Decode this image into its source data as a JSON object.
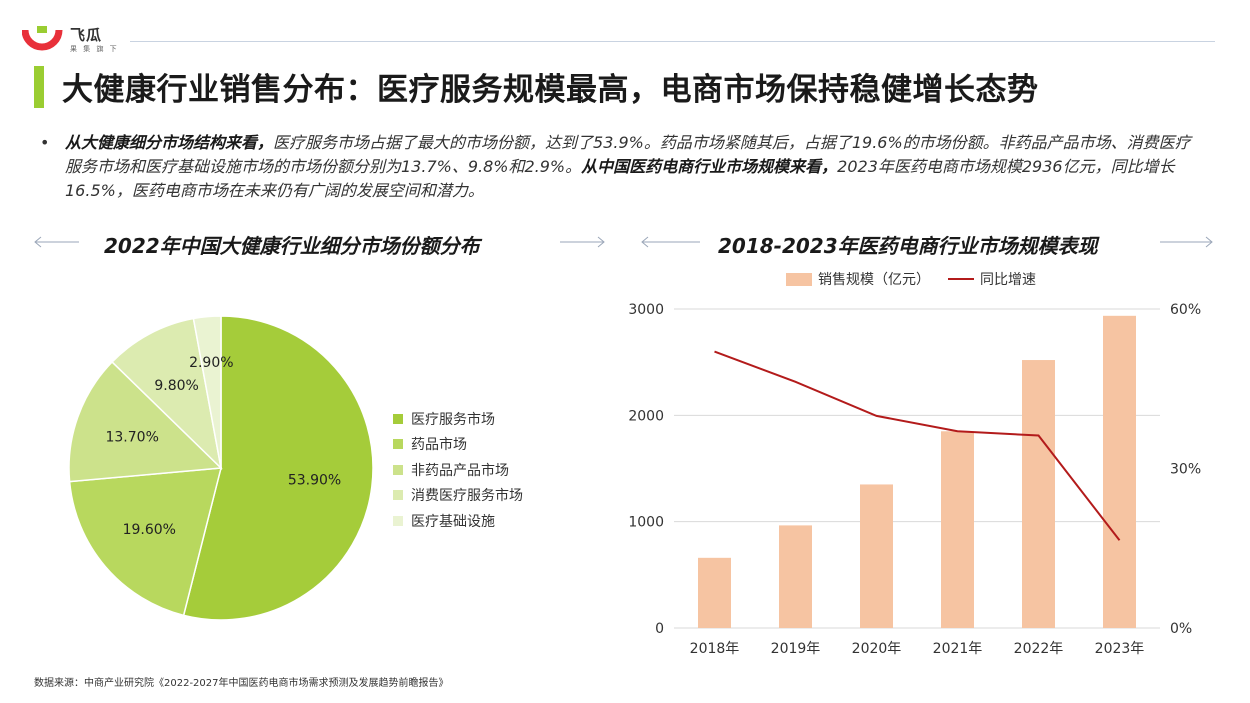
{
  "brand": {
    "name": "飞瓜",
    "slogan": "果 集 旗 下",
    "accent": "#9acd32"
  },
  "title": "大健康行业销售分布：医疗服务规模最高，电商市场保持稳健增长态势",
  "summary": {
    "bullet": "•",
    "p1_bold": "从大健康细分市场结构来看，",
    "p1": "医疗服务市场占据了最大的市场份额，达到了53.9%。药品市场紧随其后，占据了19.6%的市场份额。非药品产品市场、消费医疗服务市场和医疗基础设施市场的市场份额分别为13.7%、9.8%和2.9%。",
    "p2_bold": "从中国医药电商行业市场规模来看，",
    "p2": "2023年医药电商市场规模2936亿元，同比增长16.5%，医药电商市场在未来仍有广阔的发展空间和潜力。"
  },
  "source": "数据来源：中商产业研究院《2022-2027年中国医药电商市场需求预测及发展趋势前瞻报告》",
  "chart_data": [
    {
      "type": "pie",
      "title": "2022年中国大健康行业细分市场份额分布",
      "categories": [
        "医疗服务市场",
        "药品市场",
        "非药品产品市场",
        "消费医疗服务市场",
        "医疗基础设施"
      ],
      "values": [
        53.9,
        19.6,
        13.7,
        9.8,
        2.9
      ],
      "value_labels": [
        "53.90%",
        "19.60%",
        "13.70%",
        "9.80%",
        "2.90%"
      ],
      "colors": [
        "#a5cc3a",
        "#b8d85e",
        "#cce28b",
        "#dcebb0",
        "#eaf3d2"
      ],
      "legend": "right"
    },
    {
      "type": "bar",
      "title": "2018-2023年医药电商行业市场规模表现",
      "categories": [
        "2018年",
        "2019年",
        "2020年",
        "2021年",
        "2022年",
        "2023年"
      ],
      "series": [
        {
          "name": "销售规模（亿元）",
          "type": "bar",
          "axis": "left",
          "color": "#f6c4a2",
          "values": [
            660,
            965,
            1350,
            1850,
            2520,
            2936
          ]
        },
        {
          "name": "同比增速",
          "type": "line",
          "axis": "right",
          "color": "#b31b1b",
          "values": [
            52.0,
            46.3,
            39.9,
            37.0,
            36.2,
            16.5
          ]
        }
      ],
      "ylim": [
        0,
        3000
      ],
      "yticks": [
        "0",
        "1000",
        "2000",
        "3000"
      ],
      "y2lim": [
        0,
        60
      ],
      "y2ticks": [
        "0%",
        "30%",
        "60%"
      ],
      "grid": true,
      "legend": "top"
    }
  ]
}
